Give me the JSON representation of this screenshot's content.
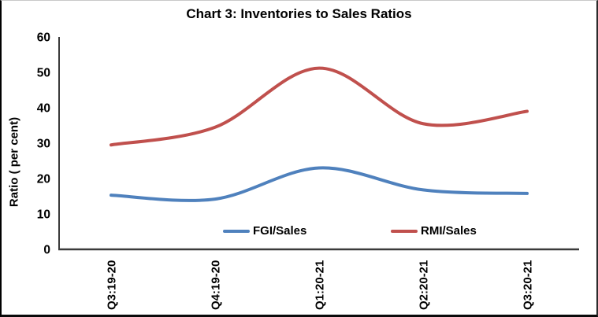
{
  "chart_data": {
    "type": "line",
    "smoothed": true,
    "title": "Chart 3: Inventories to Sales Ratios",
    "categories": [
      "Q3:19-20",
      "Q4:19-20",
      "Q1:20-21",
      "Q2:20-21",
      "Q3:20-21"
    ],
    "series": [
      {
        "name": "FGI/Sales",
        "color": "#4F81BD",
        "values": [
          15.3,
          14.2,
          23.0,
          16.8,
          15.8
        ]
      },
      {
        "name": "RMI/Sales",
        "color": "#C0504D",
        "values": [
          29.5,
          34.5,
          51.2,
          35.5,
          39.0
        ]
      }
    ],
    "xlabel": "",
    "ylabel": "Ratio ( per cent)",
    "ylim": [
      0,
      60
    ],
    "yticks": [
      0,
      10,
      20,
      30,
      40,
      50,
      60
    ],
    "grid": false,
    "legend_position": "inside-bottom-center",
    "axis_color": "#3a3a3a",
    "text_color": "#000000"
  }
}
